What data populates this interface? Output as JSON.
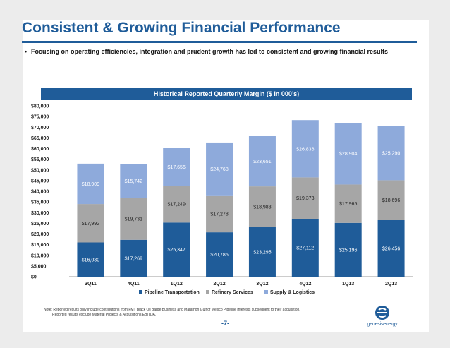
{
  "slide": {
    "title": "Consistent & Growing Financial Performance",
    "bullet_marker": "•",
    "bullet": "Focusing on operating efficiencies, integration and prudent growth has led to consistent and growing financial results",
    "chart_banner": "Historical Reported Quarterly Margin ($ in 000’s)",
    "note_line1": "Note: Reported results only include contributions from FMT Black Oil Barge Business and Marathon Gulf of Mexico Pipeline Interests subsequent to their acquisition.",
    "note_line2": "Reported results exclude Material Projects & Acquisitions EBITDA.",
    "page_number": "-7-",
    "logo_text": "genesisenergy",
    "colors": {
      "brand_blue": "#1f5c99",
      "pipeline": "#1f5c99",
      "refinery": "#a6a6a6",
      "supply": "#8eaadb"
    }
  },
  "chart_data": {
    "type": "bar",
    "stacked": true,
    "title": "Historical Reported Quarterly Margin ($ in 000’s)",
    "xlabel": "",
    "ylabel": "",
    "ylim": [
      0,
      80000
    ],
    "y_ticks": [
      "$0",
      "$5,000",
      "$10,000",
      "$15,000",
      "$20,000",
      "$25,000",
      "$30,000",
      "$35,000",
      "$40,000",
      "$45,000",
      "$50,000",
      "$55,000",
      "$60,000",
      "$65,000",
      "$70,000",
      "$75,000",
      "$80,000"
    ],
    "categories": [
      "3Q11",
      "4Q11",
      "1Q12",
      "2Q12",
      "3Q12",
      "4Q12",
      "1Q13",
      "2Q13"
    ],
    "series": [
      {
        "name": "Pipeline Transportation",
        "color": "#1f5c99",
        "values": [
          16030,
          17269,
          25347,
          20785,
          23295,
          27112,
          25196,
          26456
        ],
        "labels": [
          "$16,030",
          "$17,269",
          "$25,347",
          "$20,785",
          "$23,295",
          "$27,112",
          "$25,196",
          "$26,456"
        ]
      },
      {
        "name": "Refinery Services",
        "color": "#a6a6a6",
        "values": [
          17992,
          19731,
          17249,
          17278,
          18983,
          19373,
          17965,
          18696
        ],
        "labels": [
          "$17,992",
          "$19,731",
          "$17,249",
          "$17,278",
          "$18,983",
          "$19,373",
          "$17,965",
          "$18,696"
        ]
      },
      {
        "name": "Supply & Logistics",
        "color": "#8eaadb",
        "values": [
          18909,
          15742,
          17656,
          24768,
          23651,
          26836,
          28904,
          25290
        ],
        "labels": [
          "$18,909",
          "$15,742",
          "$17,656",
          "$24,768",
          "$23,651",
          "$26,836",
          "$28,904",
          "$25,290"
        ]
      }
    ],
    "grid": false,
    "legend_position": "bottom"
  }
}
